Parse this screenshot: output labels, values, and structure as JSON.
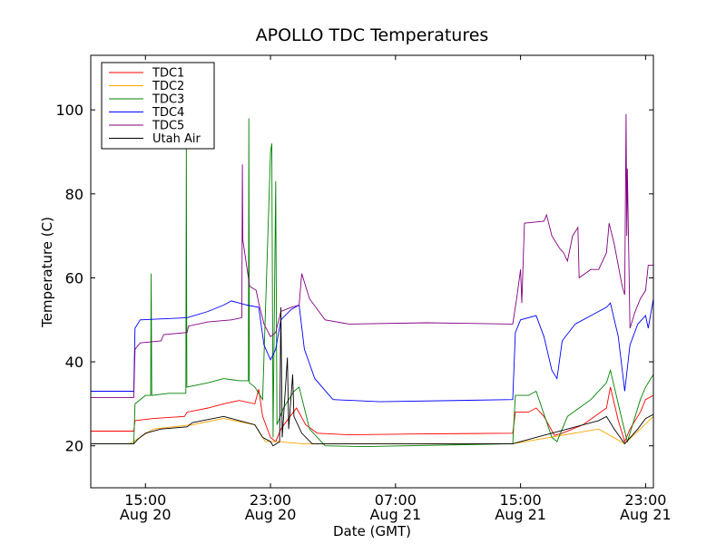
{
  "chart_data": {
    "type": "line",
    "title": "APOLLO TDC Temperatures",
    "xlabel": "Date (GMT)",
    "ylabel": "Temperature (C)",
    "ylim": [
      10,
      113
    ],
    "xlim": [
      "2009-08-20 11:30",
      "2009-08-21 23:30"
    ],
    "y_ticks": [
      20,
      40,
      60,
      80,
      100
    ],
    "x_ticks": [
      {
        "line1": "15:00",
        "line2": "Aug 20",
        "x": "2009-08-20 15:00"
      },
      {
        "line1": "23:00",
        "line2": "Aug 20",
        "x": "2009-08-20 23:00"
      },
      {
        "line1": "07:00",
        "line2": "Aug 21",
        "x": "2009-08-21 07:00"
      },
      {
        "line1": "15:00",
        "line2": "Aug 21",
        "x": "2009-08-21 15:00"
      },
      {
        "line1": "23:00",
        "line2": "Aug 21",
        "x": "2009-08-21 23:00"
      }
    ],
    "grid": false,
    "legend_position": "top-left",
    "series": [
      {
        "name": "TDC1",
        "color": "#ff0000",
        "points": [
          [
            "2009-08-20 11:30",
            23.5
          ],
          [
            "2009-08-20 14:15",
            23.5
          ],
          [
            "2009-08-20 14:20",
            26
          ],
          [
            "2009-08-20 15:30",
            26.5
          ],
          [
            "2009-08-20 17:30",
            27
          ],
          [
            "2009-08-20 17:40",
            28
          ],
          [
            "2009-08-20 19:00",
            29
          ],
          [
            "2009-08-20 20:00",
            30
          ],
          [
            "2009-08-20 21:00",
            30.8
          ],
          [
            "2009-08-20 22:00",
            30
          ],
          [
            "2009-08-20 22:15",
            33.5
          ],
          [
            "2009-08-20 22:30",
            27
          ],
          [
            "2009-08-20 23:00",
            22
          ],
          [
            "2009-08-20 23:20",
            21
          ],
          [
            "2009-08-20 23:40",
            24
          ],
          [
            "2009-08-21 00:15",
            27
          ],
          [
            "2009-08-21 00:40",
            29
          ],
          [
            "2009-08-21 01:15",
            25
          ],
          [
            "2009-08-21 02:00",
            23
          ],
          [
            "2009-08-21 04:00",
            22.6
          ],
          [
            "2009-08-21 08:00",
            22.8
          ],
          [
            "2009-08-21 14:30",
            23
          ],
          [
            "2009-08-21 14:40",
            28
          ],
          [
            "2009-08-21 15:30",
            28
          ],
          [
            "2009-08-21 16:00",
            29
          ],
          [
            "2009-08-21 16:30",
            27
          ],
          [
            "2009-08-21 17:10",
            22.5
          ],
          [
            "2009-08-21 17:40",
            23
          ],
          [
            "2009-08-21 19:00",
            25
          ],
          [
            "2009-08-21 20:30",
            29
          ],
          [
            "2009-08-21 20:45",
            34
          ],
          [
            "2009-08-21 21:15",
            26
          ],
          [
            "2009-08-21 21:40",
            21
          ],
          [
            "2009-08-21 22:00",
            24
          ],
          [
            "2009-08-21 22:40",
            28
          ],
          [
            "2009-08-21 23:00",
            31
          ],
          [
            "2009-08-21 23:30",
            32
          ]
        ]
      },
      {
        "name": "TDC2",
        "color": "#ffa500",
        "points": [
          [
            "2009-08-20 11:30",
            20.5
          ],
          [
            "2009-08-20 14:00",
            20.5
          ],
          [
            "2009-08-20 15:30",
            24
          ],
          [
            "2009-08-20 18:00",
            25
          ],
          [
            "2009-08-20 20:00",
            26.5
          ],
          [
            "2009-08-20 22:00",
            25
          ],
          [
            "2009-08-20 22:40",
            21
          ],
          [
            "2009-08-20 23:30",
            21
          ],
          [
            "2009-08-21 01:00",
            20.5
          ],
          [
            "2009-08-21 14:30",
            20.5
          ],
          [
            "2009-08-21 20:00",
            24
          ],
          [
            "2009-08-21 21:40",
            20.5
          ],
          [
            "2009-08-21 23:30",
            27
          ]
        ]
      },
      {
        "name": "TDC3",
        "color": "#008000",
        "points": [
          [
            "2009-08-20 11:30",
            20.5
          ],
          [
            "2009-08-20 14:15",
            20.5
          ],
          [
            "2009-08-20 14:20",
            30
          ],
          [
            "2009-08-20 15:00",
            32
          ],
          [
            "2009-08-20 15:20",
            32
          ],
          [
            "2009-08-20 15:22",
            61
          ],
          [
            "2009-08-20 15:24",
            32
          ],
          [
            "2009-08-20 16:30",
            32.5
          ],
          [
            "2009-08-20 17:35",
            32.5
          ],
          [
            "2009-08-20 17:37",
            91
          ],
          [
            "2009-08-20 17:39",
            34
          ],
          [
            "2009-08-20 19:00",
            35
          ],
          [
            "2009-08-20 20:00",
            36
          ],
          [
            "2009-08-20 21:00",
            35.5
          ],
          [
            "2009-08-20 21:35",
            35.5
          ],
          [
            "2009-08-20 21:37",
            98
          ],
          [
            "2009-08-20 21:39",
            35
          ],
          [
            "2009-08-20 22:00",
            34
          ],
          [
            "2009-08-20 22:30",
            31
          ],
          [
            "2009-08-20 23:00",
            90
          ],
          [
            "2009-08-20 23:05",
            92
          ],
          [
            "2009-08-20 23:10",
            22
          ],
          [
            "2009-08-20 23:20",
            83
          ],
          [
            "2009-08-20 23:25",
            25
          ],
          [
            "2009-08-20 23:50",
            29
          ],
          [
            "2009-08-21 00:30",
            33
          ],
          [
            "2009-08-21 00:50",
            34
          ],
          [
            "2009-08-21 01:30",
            24
          ],
          [
            "2009-08-21 02:30",
            20
          ],
          [
            "2009-08-21 05:00",
            19.8
          ],
          [
            "2009-08-21 14:30",
            20.5
          ],
          [
            "2009-08-21 14:40",
            32
          ],
          [
            "2009-08-21 15:30",
            32
          ],
          [
            "2009-08-21 16:00",
            33
          ],
          [
            "2009-08-21 17:00",
            22
          ],
          [
            "2009-08-21 17:20",
            21
          ],
          [
            "2009-08-21 18:00",
            27
          ],
          [
            "2009-08-21 19:30",
            31
          ],
          [
            "2009-08-21 20:30",
            35
          ],
          [
            "2009-08-21 20:45",
            38
          ],
          [
            "2009-08-21 21:30",
            26
          ],
          [
            "2009-08-21 21:50",
            21
          ],
          [
            "2009-08-21 22:15",
            26
          ],
          [
            "2009-08-21 22:40",
            31
          ],
          [
            "2009-08-21 23:00",
            34
          ],
          [
            "2009-08-21 23:30",
            37
          ]
        ]
      },
      {
        "name": "TDC4",
        "color": "#0000ff",
        "points": [
          [
            "2009-08-20 11:30",
            33
          ],
          [
            "2009-08-20 14:15",
            33
          ],
          [
            "2009-08-20 14:20",
            48
          ],
          [
            "2009-08-20 14:40",
            50
          ],
          [
            "2009-08-20 17:40",
            50.5
          ],
          [
            "2009-08-20 19:00",
            52
          ],
          [
            "2009-08-20 20:00",
            53.5
          ],
          [
            "2009-08-20 20:30",
            54.5
          ],
          [
            "2009-08-20 21:30",
            53.5
          ],
          [
            "2009-08-20 22:15",
            53
          ],
          [
            "2009-08-20 22:35",
            44
          ],
          [
            "2009-08-20 23:00",
            40.5
          ],
          [
            "2009-08-20 23:20",
            43
          ],
          [
            "2009-08-20 23:40",
            50
          ],
          [
            "2009-08-21 00:20",
            52.5
          ],
          [
            "2009-08-21 00:50",
            53.5
          ],
          [
            "2009-08-21 01:10",
            43
          ],
          [
            "2009-08-21 01:50",
            36
          ],
          [
            "2009-08-21 03:00",
            31
          ],
          [
            "2009-08-21 06:00",
            30.5
          ],
          [
            "2009-08-21 14:30",
            31
          ],
          [
            "2009-08-21 14:40",
            47
          ],
          [
            "2009-08-21 15:00",
            50
          ],
          [
            "2009-08-21 16:00",
            51
          ],
          [
            "2009-08-21 16:30",
            46
          ],
          [
            "2009-08-21 17:00",
            38
          ],
          [
            "2009-08-21 17:20",
            36
          ],
          [
            "2009-08-21 17:40",
            45
          ],
          [
            "2009-08-21 18:30",
            49
          ],
          [
            "2009-08-21 19:30",
            51
          ],
          [
            "2009-08-21 20:30",
            53
          ],
          [
            "2009-08-21 20:45",
            54
          ],
          [
            "2009-08-21 21:15",
            46
          ],
          [
            "2009-08-21 21:40",
            33
          ],
          [
            "2009-08-21 22:00",
            44
          ],
          [
            "2009-08-21 22:30",
            49
          ],
          [
            "2009-08-21 23:00",
            51
          ],
          [
            "2009-08-21 23:10",
            48
          ],
          [
            "2009-08-21 23:30",
            55
          ]
        ]
      },
      {
        "name": "TDC5",
        "color": "#800080",
        "points": [
          [
            "2009-08-20 11:30",
            31.5
          ],
          [
            "2009-08-20 14:15",
            31.5
          ],
          [
            "2009-08-20 14:20",
            43
          ],
          [
            "2009-08-20 14:40",
            44.5
          ],
          [
            "2009-08-20 16:00",
            45
          ],
          [
            "2009-08-20 16:10",
            46.5
          ],
          [
            "2009-08-20 17:40",
            47
          ],
          [
            "2009-08-20 17:45",
            48.5
          ],
          [
            "2009-08-20 19:00",
            49.5
          ],
          [
            "2009-08-20 20:30",
            50
          ],
          [
            "2009-08-20 21:10",
            50.5
          ],
          [
            "2009-08-20 21:12",
            87
          ],
          [
            "2009-08-20 21:14",
            69
          ],
          [
            "2009-08-20 21:40",
            58
          ],
          [
            "2009-08-20 22:05",
            57
          ],
          [
            "2009-08-20 22:15",
            54
          ],
          [
            "2009-08-20 22:35",
            49
          ],
          [
            "2009-08-20 23:00",
            46
          ],
          [
            "2009-08-20 23:20",
            47
          ],
          [
            "2009-08-20 23:40",
            52
          ],
          [
            "2009-08-21 00:20",
            53
          ],
          [
            "2009-08-21 00:50",
            53.5
          ],
          [
            "2009-08-21 01:00",
            61
          ],
          [
            "2009-08-21 01:30",
            55
          ],
          [
            "2009-08-21 02:30",
            50
          ],
          [
            "2009-08-21 04:00",
            49
          ],
          [
            "2009-08-21 09:00",
            49.3
          ],
          [
            "2009-08-21 14:30",
            49
          ],
          [
            "2009-08-21 14:45",
            55
          ],
          [
            "2009-08-21 15:00",
            62
          ],
          [
            "2009-08-21 15:05",
            54
          ],
          [
            "2009-08-21 15:15",
            73
          ],
          [
            "2009-08-21 16:30",
            73.5
          ],
          [
            "2009-08-21 16:40",
            75
          ],
          [
            "2009-08-21 17:00",
            70
          ],
          [
            "2009-08-21 17:30",
            67
          ],
          [
            "2009-08-21 17:45",
            66
          ],
          [
            "2009-08-21 18:00",
            64
          ],
          [
            "2009-08-21 18:20",
            70
          ],
          [
            "2009-08-21 18:40",
            72
          ],
          [
            "2009-08-21 18:45",
            60
          ],
          [
            "2009-08-21 19:30",
            62
          ],
          [
            "2009-08-21 20:00",
            62
          ],
          [
            "2009-08-21 20:30",
            66
          ],
          [
            "2009-08-21 20:40",
            73
          ],
          [
            "2009-08-21 21:00",
            68
          ],
          [
            "2009-08-21 21:30",
            58
          ],
          [
            "2009-08-21 21:40",
            56
          ],
          [
            "2009-08-21 21:45",
            99
          ],
          [
            "2009-08-21 21:48",
            70
          ],
          [
            "2009-08-21 21:50",
            86
          ],
          [
            "2009-08-21 22:00",
            48
          ],
          [
            "2009-08-21 22:20",
            52
          ],
          [
            "2009-08-21 22:40",
            55
          ],
          [
            "2009-08-21 23:00",
            57
          ],
          [
            "2009-08-21 23:10",
            63
          ],
          [
            "2009-08-21 23:30",
            63
          ]
        ]
      },
      {
        "name": "Utah Air",
        "color": "#000000",
        "points": [
          [
            "2009-08-20 11:30",
            20.5
          ],
          [
            "2009-08-20 14:15",
            20.5
          ],
          [
            "2009-08-20 14:30",
            21.5
          ],
          [
            "2009-08-20 15:00",
            23
          ],
          [
            "2009-08-20 16:00",
            24
          ],
          [
            "2009-08-20 17:40",
            24.5
          ],
          [
            "2009-08-20 18:00",
            25.5
          ],
          [
            "2009-08-20 20:00",
            27
          ],
          [
            "2009-08-20 21:00",
            26
          ],
          [
            "2009-08-20 22:00",
            25
          ],
          [
            "2009-08-20 22:30",
            22
          ],
          [
            "2009-08-20 23:00",
            21
          ],
          [
            "2009-08-20 23:10",
            20
          ],
          [
            "2009-08-20 23:35",
            21
          ],
          [
            "2009-08-20 23:40",
            53
          ],
          [
            "2009-08-20 23:45",
            22
          ],
          [
            "2009-08-21 00:05",
            41
          ],
          [
            "2009-08-21 00:10",
            24
          ],
          [
            "2009-08-21 00:25",
            37
          ],
          [
            "2009-08-21 00:30",
            27
          ],
          [
            "2009-08-21 01:00",
            23
          ],
          [
            "2009-08-21 01:40",
            20.5
          ],
          [
            "2009-08-21 14:30",
            20.5
          ],
          [
            "2009-08-21 16:30",
            22.5
          ],
          [
            "2009-08-21 17:00",
            23
          ],
          [
            "2009-08-21 18:00",
            24
          ],
          [
            "2009-08-21 20:00",
            26
          ],
          [
            "2009-08-21 20:30",
            27
          ],
          [
            "2009-08-21 21:00",
            24
          ],
          [
            "2009-08-21 21:40",
            20.5
          ],
          [
            "2009-08-21 22:30",
            24
          ],
          [
            "2009-08-21 23:00",
            26.5
          ],
          [
            "2009-08-21 23:30",
            27.5
          ]
        ]
      }
    ]
  }
}
